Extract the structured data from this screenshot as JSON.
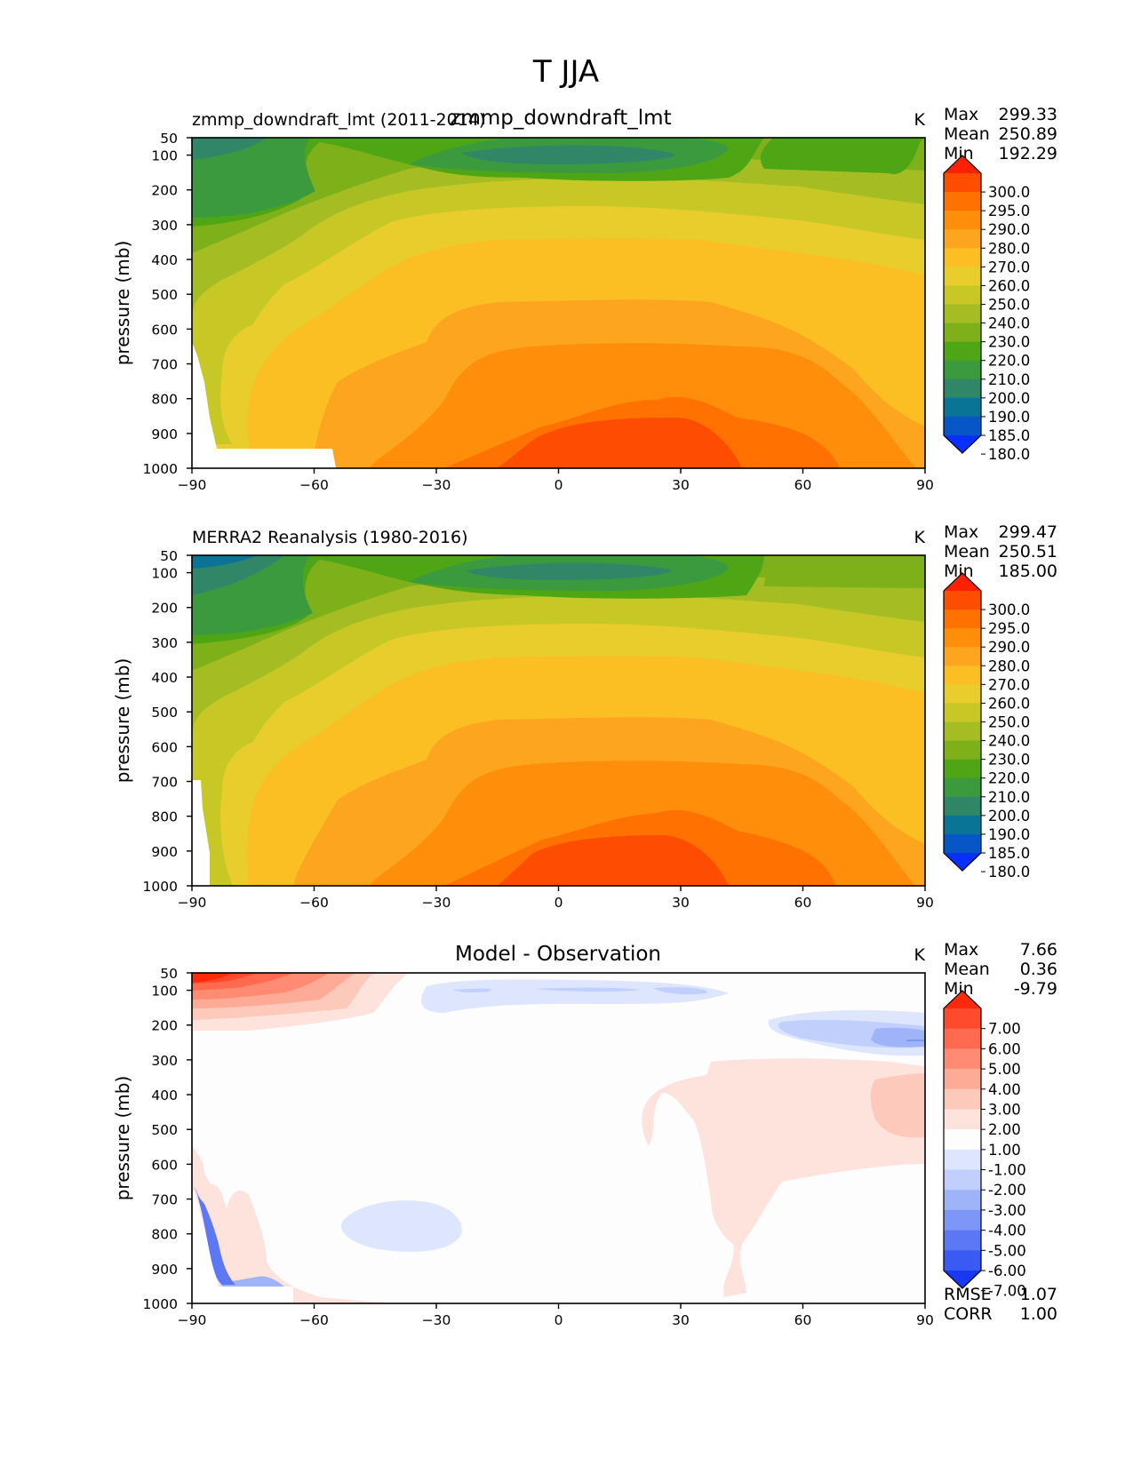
{
  "figure_title": "T JJA",
  "chart_data": [
    {
      "type": "heatmap",
      "panel": "test",
      "title_left": "zmmp_downdraft_lmt (2011-2014)",
      "title_center": "zmmp_downdraft_lmt",
      "units": "K",
      "ylabel": "pressure (mb)",
      "xlim": [
        -90,
        90
      ],
      "ylim": [
        1000,
        50
      ],
      "xticks": [
        -90,
        -60,
        -30,
        0,
        30,
        60,
        90
      ],
      "xtick_labels": [
        "−90",
        "−60",
        "−30",
        "0",
        "30",
        "60",
        "90"
      ],
      "yticks": [
        50,
        100,
        200,
        300,
        400,
        500,
        600,
        700,
        800,
        900,
        1000
      ],
      "stats": [
        {
          "label": "Max",
          "value": "299.33"
        },
        {
          "label": "Mean",
          "value": "250.89"
        },
        {
          "label": "Min",
          "value": "192.29"
        }
      ],
      "colorbar_labels": [
        "300.0",
        "295.0",
        "290.0",
        "280.0",
        "270.0",
        "260.0",
        "250.0",
        "240.0",
        "230.0",
        "220.0",
        "210.0",
        "200.0",
        "190.0",
        "185.0",
        "180.0"
      ],
      "colorbar_colors": [
        "#ff2000",
        "#ff4d00",
        "#ff7100",
        "#ff8e0b",
        "#fda51e",
        "#fbbf24",
        "#e8cd2c",
        "#c7c826",
        "#a5bd23",
        "#7eb119",
        "#4ea615",
        "#3b9a3e",
        "#2f8768",
        "#0a7496",
        "#0656c7",
        "#0730fb"
      ]
    },
    {
      "type": "heatmap",
      "panel": "reference",
      "title_left": "MERRA2 Reanalysis (1980-2016)",
      "title_center": "",
      "units": "K",
      "ylabel": "pressure (mb)",
      "xlim": [
        -90,
        90
      ],
      "ylim": [
        1000,
        50
      ],
      "xticks": [
        -90,
        -60,
        -30,
        0,
        30,
        60,
        90
      ],
      "xtick_labels": [
        "−90",
        "−60",
        "−30",
        "0",
        "30",
        "60",
        "90"
      ],
      "yticks": [
        50,
        100,
        200,
        300,
        400,
        500,
        600,
        700,
        800,
        900,
        1000
      ],
      "stats": [
        {
          "label": "Max",
          "value": "299.47"
        },
        {
          "label": "Mean",
          "value": "250.51"
        },
        {
          "label": "Min",
          "value": "185.00"
        }
      ],
      "colorbar_labels": [
        "300.0",
        "295.0",
        "290.0",
        "280.0",
        "270.0",
        "260.0",
        "250.0",
        "240.0",
        "230.0",
        "220.0",
        "210.0",
        "200.0",
        "190.0",
        "185.0",
        "180.0"
      ],
      "colorbar_colors": [
        "#ff2000",
        "#ff4d00",
        "#ff7100",
        "#ff8e0b",
        "#fda51e",
        "#fbbf24",
        "#e8cd2c",
        "#c7c826",
        "#a5bd23",
        "#7eb119",
        "#4ea615",
        "#3b9a3e",
        "#2f8768",
        "#0a7496",
        "#0656c7",
        "#0730fb"
      ]
    },
    {
      "type": "heatmap",
      "panel": "difference",
      "title_left": "",
      "title_center": "Model - Observation",
      "units": "K",
      "ylabel": "pressure (mb)",
      "xlim": [
        -90,
        90
      ],
      "ylim": [
        1000,
        50
      ],
      "xticks": [
        -90,
        -60,
        -30,
        0,
        30,
        60,
        90
      ],
      "xtick_labels": [
        "−90",
        "−60",
        "−30",
        "0",
        "30",
        "60",
        "90"
      ],
      "yticks": [
        50,
        100,
        200,
        300,
        400,
        500,
        600,
        700,
        800,
        900,
        1000
      ],
      "stats": [
        {
          "label": "Max",
          "value": "7.66"
        },
        {
          "label": "Mean",
          "value": "0.36"
        },
        {
          "label": "Min",
          "value": "-9.79"
        }
      ],
      "metrics": [
        {
          "label": "RMSE",
          "value": "1.07"
        },
        {
          "label": "CORR",
          "value": "1.00"
        }
      ],
      "colorbar_labels": [
        "7.00",
        "6.00",
        "5.00",
        "4.00",
        "3.00",
        "2.00",
        "1.00",
        "-1.00",
        "-2.00",
        "-3.00",
        "-4.00",
        "-5.00",
        "-6.00",
        "-7.00"
      ],
      "colorbar_colors": [
        "#ff2a0a",
        "#ff4a2e",
        "#ff6a50",
        "#ff8b73",
        "#fdaa96",
        "#fdc9bb",
        "#fde3db",
        "#fdfdfd",
        "#dde6fd",
        "#c0cffb",
        "#9fb3f9",
        "#7e96f7",
        "#5c78f5",
        "#3a5af4",
        "#1838f2"
      ]
    }
  ]
}
